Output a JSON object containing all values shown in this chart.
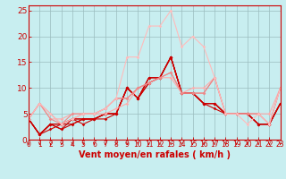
{
  "xlabel": "Vent moyen/en rafales ( km/h )",
  "xlim": [
    0,
    23
  ],
  "ylim": [
    0,
    26
  ],
  "yticks": [
    0,
    5,
    10,
    15,
    20,
    25
  ],
  "xticks": [
    0,
    1,
    2,
    3,
    4,
    5,
    6,
    7,
    8,
    9,
    10,
    11,
    12,
    13,
    14,
    15,
    16,
    17,
    18,
    19,
    20,
    21,
    22,
    23
  ],
  "background_color": "#c8eef0",
  "grid_color": "#9bbcbe",
  "lines": [
    {
      "x": [
        0,
        1,
        2,
        3,
        4,
        5,
        6,
        7,
        8,
        9,
        10,
        11,
        12,
        13,
        14,
        15,
        16,
        17,
        18,
        19,
        20,
        21,
        22,
        23
      ],
      "y": [
        4,
        1,
        3,
        3,
        3,
        4,
        4,
        4,
        5,
        10,
        8,
        11,
        12,
        16,
        9,
        9,
        7,
        7,
        5,
        5,
        5,
        3,
        3,
        7
      ],
      "color": "#cc0000",
      "lw": 0.8,
      "marker": "D",
      "ms": 1.8
    },
    {
      "x": [
        0,
        1,
        2,
        3,
        4,
        5,
        6,
        7,
        8,
        9,
        10,
        11,
        12,
        13,
        14,
        15,
        16,
        17,
        18,
        19,
        20,
        21,
        22,
        23
      ],
      "y": [
        4,
        1,
        3,
        2,
        3,
        4,
        4,
        5,
        5,
        10,
        8,
        12,
        12,
        16,
        9,
        9,
        7,
        7,
        5,
        5,
        5,
        3,
        3,
        7
      ],
      "color": "#cc0000",
      "lw": 0.8,
      "marker": "D",
      "ms": 1.8
    },
    {
      "x": [
        0,
        1,
        2,
        3,
        4,
        5,
        6,
        7,
        8,
        9,
        10,
        11,
        12,
        13,
        14,
        15,
        16,
        17,
        18,
        19,
        20,
        21,
        22,
        23
      ],
      "y": [
        4,
        1,
        3,
        3,
        4,
        4,
        4,
        5,
        5,
        10,
        8,
        12,
        12,
        16,
        9,
        9,
        7,
        6,
        5,
        5,
        5,
        3,
        3,
        7
      ],
      "color": "#cc0000",
      "lw": 0.8,
      "marker": "D",
      "ms": 1.8
    },
    {
      "x": [
        0,
        1,
        2,
        3,
        4,
        5,
        6,
        7,
        8,
        9,
        10,
        11,
        12,
        13,
        14,
        15,
        16,
        17,
        18,
        19,
        20,
        21,
        22,
        23
      ],
      "y": [
        4,
        1,
        3,
        2,
        4,
        3,
        4,
        5,
        5,
        10,
        8,
        11,
        12,
        16,
        9,
        9,
        7,
        7,
        5,
        5,
        5,
        3,
        3,
        7
      ],
      "color": "#cc0000",
      "lw": 0.8,
      "marker": "D",
      "ms": 1.8
    },
    {
      "x": [
        0,
        1,
        2,
        3,
        4,
        5,
        6,
        7,
        8,
        9,
        10,
        11,
        12,
        13,
        14,
        15,
        16,
        17,
        18,
        19,
        20,
        21,
        22,
        23
      ],
      "y": [
        4,
        1,
        2,
        3,
        4,
        4,
        4,
        5,
        5,
        10,
        8,
        12,
        12,
        16,
        9,
        9,
        7,
        7,
        5,
        5,
        5,
        3,
        3,
        7
      ],
      "color": "#cc0000",
      "lw": 0.8,
      "marker": "D",
      "ms": 1.8
    },
    {
      "x": [
        0,
        1,
        2,
        3,
        4,
        5,
        6,
        7,
        8,
        9,
        10,
        11,
        12,
        13,
        14,
        15,
        16,
        17,
        18,
        19,
        20,
        21,
        22,
        23
      ],
      "y": [
        4,
        7,
        4,
        4,
        5,
        5,
        5,
        5,
        6,
        7,
        10,
        11,
        12,
        12,
        9,
        10,
        10,
        12,
        5,
        5,
        5,
        5,
        5,
        10
      ],
      "color": "#ffaaaa",
      "lw": 0.8,
      "marker": "D",
      "ms": 1.8
    },
    {
      "x": [
        0,
        1,
        2,
        3,
        4,
        5,
        6,
        7,
        8,
        9,
        10,
        11,
        12,
        13,
        14,
        15,
        16,
        17,
        18,
        19,
        20,
        21,
        22,
        23
      ],
      "y": [
        4,
        7,
        4,
        3,
        5,
        5,
        5,
        6,
        8,
        8,
        10,
        11,
        12,
        13,
        9,
        9,
        9,
        12,
        5,
        5,
        5,
        5,
        3,
        10
      ],
      "color": "#ee8888",
      "lw": 0.8,
      "marker": "D",
      "ms": 1.8
    },
    {
      "x": [
        0,
        1,
        2,
        3,
        4,
        5,
        6,
        7,
        8,
        9,
        10,
        11,
        12,
        13,
        14,
        15,
        16,
        17,
        18,
        19,
        20,
        21,
        22,
        23
      ],
      "y": [
        4,
        7,
        5,
        3,
        4,
        5,
        5,
        6,
        8,
        8,
        10,
        11,
        12,
        13,
        9,
        9,
        9,
        12,
        5,
        5,
        5,
        5,
        3,
        10
      ],
      "color": "#ee8888",
      "lw": 0.8,
      "marker": "D",
      "ms": 1.8
    },
    {
      "x": [
        0,
        1,
        2,
        3,
        4,
        5,
        6,
        7,
        8,
        9,
        10,
        11,
        12,
        13,
        14,
        15,
        16,
        17,
        18,
        19,
        20,
        21,
        22,
        23
      ],
      "y": [
        4,
        7,
        5,
        3,
        4,
        5,
        5,
        6,
        8,
        16,
        16,
        22,
        22,
        25,
        18,
        20,
        18,
        12,
        5,
        5,
        3,
        5,
        3,
        10
      ],
      "color": "#ffbbbb",
      "lw": 0.8,
      "marker": "D",
      "ms": 1.8
    }
  ],
  "arrow_color": "#cc0000",
  "xlabel_color": "#cc0000",
  "xlabel_fontsize": 7,
  "tick_color": "#cc0000",
  "tick_fontsize": 5.5,
  "ytick_fontsize": 6.5
}
